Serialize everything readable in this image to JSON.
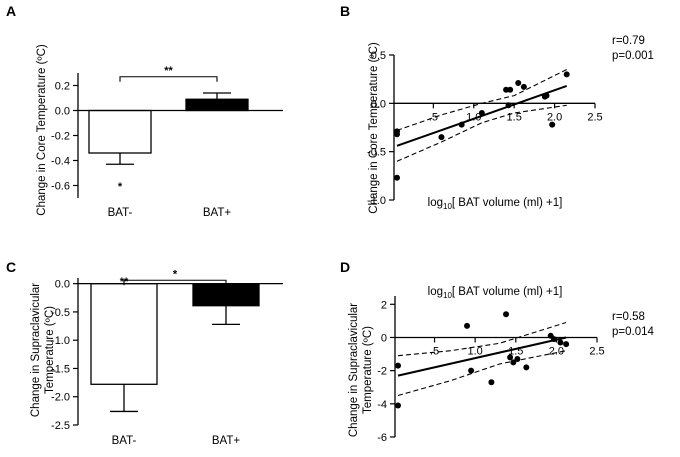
{
  "chart_data": [
    {
      "panel": "A",
      "type": "bar",
      "categories": [
        "BAT-",
        "BAT+"
      ],
      "values": [
        -0.34,
        0.09
      ],
      "errors": [
        0.09,
        0.05
      ],
      "error_direction": [
        "down",
        "up"
      ],
      "bar_fill": [
        "#ffffff",
        "#000000"
      ],
      "ylabel": "Change in Core Temperature (ºC)",
      "ylim": [
        -0.7,
        0.3
      ],
      "yticks": [
        0.2,
        0.0,
        -0.2,
        -0.4,
        -0.6
      ],
      "ytick_labels": [
        "0.2",
        "0.0",
        "-0.2",
        "-0.4",
        "-0.6"
      ],
      "bar_annotations": [
        {
          "category": "BAT-",
          "text": "*"
        }
      ],
      "bracket": {
        "from": "BAT-",
        "to": "BAT+",
        "y": 0.27,
        "text": "**"
      }
    },
    {
      "panel": "B",
      "type": "scatter",
      "xlabel_main": "log",
      "xlabel_sub": "10",
      "xlabel_rest": "[ BAT volume (ml) +1]",
      "ylabel": "Change in Core Temperature (ºC)",
      "xlim": [
        0.05,
        2.5
      ],
      "ylim": [
        -1.0,
        0.5
      ],
      "xticks": [
        0.5,
        1.0,
        1.5,
        2.0,
        2.5
      ],
      "xtick_labels": [
        ".5",
        "1.0",
        "1.5",
        "2.0",
        "2.5"
      ],
      "yticks": [
        0.5,
        0.0,
        -0.5,
        -1.0
      ],
      "ytick_labels": [
        "0.5",
        "0.0",
        "-0.5",
        "-1.0"
      ],
      "points": {
        "x": [
          0.05,
          0.05,
          0.05,
          0.6,
          0.85,
          1.1,
          1.4,
          1.43,
          1.45,
          1.55,
          1.62,
          1.88,
          1.9,
          1.97,
          2.15
        ],
        "y": [
          -0.77,
          -0.29,
          -0.32,
          -0.35,
          -0.22,
          -0.1,
          0.14,
          -0.02,
          0.14,
          0.21,
          0.17,
          0.07,
          0.08,
          -0.22,
          0.3
        ]
      },
      "fit": {
        "x": [
          0.05,
          2.15
        ],
        "y": [
          -0.44,
          0.18
        ]
      },
      "ci_upper": {
        "x": [
          0.05,
          0.6,
          1.1,
          1.5,
          2.15
        ],
        "y": [
          -0.28,
          -0.12,
          0.0,
          0.08,
          0.35
        ]
      },
      "ci_lower": {
        "x": [
          0.05,
          0.6,
          1.1,
          1.5,
          2.15
        ],
        "y": [
          -0.6,
          -0.4,
          -0.2,
          -0.1,
          -0.02
        ]
      },
      "stats": [
        "r=0.79",
        "p=0.001"
      ]
    },
    {
      "panel": "C",
      "type": "bar",
      "categories": [
        "BAT-",
        "BAT+"
      ],
      "values": [
        -1.78,
        -0.39
      ],
      "errors": [
        0.48,
        0.33
      ],
      "error_direction": [
        "down",
        "down"
      ],
      "bar_fill": [
        "#ffffff",
        "#000000"
      ],
      "ylabel_lines": [
        "Change in Supraclavicular",
        "Temperature (ºC)"
      ],
      "ylim": [
        -2.5,
        0.1
      ],
      "yticks": [
        0.0,
        -0.5,
        -1.0,
        -1.5,
        -2.0,
        -2.5
      ],
      "ytick_labels": [
        "0.0",
        "-0.5",
        "-1.0",
        "-1.5",
        "-2.0",
        "-2.5"
      ],
      "bar_annotations": [
        {
          "category": "BAT-",
          "text": "**"
        }
      ],
      "bracket": {
        "from": "BAT-",
        "to": "BAT+",
        "y": 0.06,
        "text": "*"
      }
    },
    {
      "panel": "D",
      "type": "scatter",
      "xlabel_main": "log",
      "xlabel_sub": "10",
      "xlabel_rest": "[ BAT volume (ml) +1]",
      "ylabel_lines": [
        "Change in Supraclavicular",
        "Temperature (ºC)"
      ],
      "xlim": [
        0.05,
        2.5
      ],
      "ylim": [
        -6.0,
        2.5
      ],
      "xticks": [
        0.5,
        1.0,
        1.5,
        2.0,
        2.5
      ],
      "xtick_labels": [
        ".5",
        "1.0",
        "1.5",
        "2.0",
        "2.5"
      ],
      "yticks": [
        2,
        0,
        -2,
        -4,
        -6
      ],
      "ytick_labels": [
        "2",
        "0",
        "-2",
        "-4",
        "-6"
      ],
      "points": {
        "x": [
          0.05,
          0.05,
          0.9,
          0.95,
          1.2,
          1.38,
          1.43,
          1.47,
          1.52,
          1.63,
          1.93,
          1.97,
          2.05,
          2.12
        ],
        "y": [
          -4.1,
          -1.7,
          0.7,
          -2.0,
          -2.7,
          1.4,
          -1.2,
          -1.5,
          -1.3,
          -1.8,
          0.1,
          -0.1,
          -0.3,
          -0.4
        ]
      },
      "fit": {
        "x": [
          0.05,
          2.12
        ],
        "y": [
          -2.3,
          0.0
        ]
      },
      "ci_upper": {
        "x": [
          0.05,
          0.7,
          1.3,
          2.12
        ],
        "y": [
          -1.1,
          -0.8,
          -0.35,
          0.9
        ]
      },
      "ci_lower": {
        "x": [
          0.05,
          0.7,
          1.3,
          2.12
        ],
        "y": [
          -3.5,
          -2.6,
          -1.6,
          -0.8
        ]
      },
      "stats": [
        "r=0.58",
        "p=0.014"
      ]
    }
  ]
}
